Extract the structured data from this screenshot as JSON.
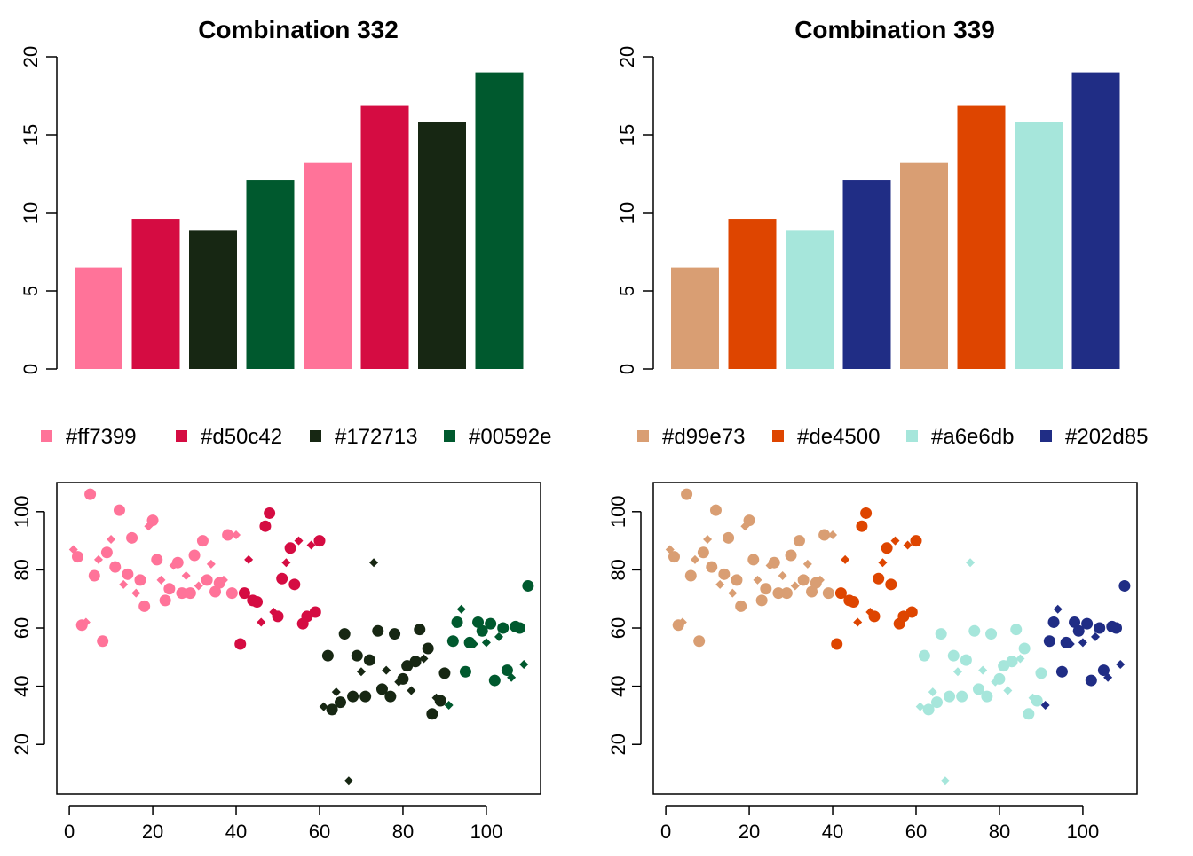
{
  "swatches": [
    {
      "title": "Combination 332",
      "palette": [
        "#ff7399",
        "#d50c42",
        "#172713",
        "#00592e"
      ]
    },
    {
      "title": "Combination 339",
      "palette": [
        "#d99e73",
        "#de4500",
        "#a6e6db",
        "#202d85"
      ]
    }
  ],
  "chart_data": [
    {
      "type": "bar",
      "title": "Combination 332",
      "values": [
        6.5,
        9.6,
        8.9,
        12.1,
        13.2,
        16.9,
        15.8,
        19.0
      ],
      "colors": [
        "#ff7399",
        "#d50c42",
        "#172713",
        "#00592e",
        "#ff7399",
        "#d50c42",
        "#172713",
        "#00592e"
      ],
      "ylim": [
        0,
        20
      ],
      "yticks": [
        0,
        5,
        10,
        15,
        20
      ],
      "axes": {
        "y": "left"
      },
      "legend": {
        "position": "bottom",
        "entries": [
          "#ff7399",
          "#d50c42",
          "#172713",
          "#00592e"
        ]
      }
    },
    {
      "type": "bar",
      "title": "Combination 339",
      "values": [
        6.5,
        9.6,
        8.9,
        12.1,
        13.2,
        16.9,
        15.8,
        19.0
      ],
      "colors": [
        "#d99e73",
        "#de4500",
        "#a6e6db",
        "#202d85",
        "#d99e73",
        "#de4500",
        "#a6e6db",
        "#202d85"
      ],
      "ylim": [
        0,
        20
      ],
      "yticks": [
        0,
        5,
        10,
        15,
        20
      ],
      "axes": {
        "y": "left"
      },
      "legend": {
        "position": "bottom",
        "entries": [
          "#d99e73",
          "#de4500",
          "#a6e6db",
          "#202d85"
        ]
      }
    },
    {
      "type": "scatter",
      "title": "",
      "palette": [
        "#ff7399",
        "#d50c42",
        "#172713",
        "#00592e"
      ],
      "xlim": [
        -3,
        113
      ],
      "ylim": [
        3,
        110
      ],
      "xticks": [
        0,
        20,
        40,
        60,
        80,
        100
      ],
      "yticks": [
        20,
        40,
        60,
        80,
        100
      ],
      "grid": false,
      "markers": "circle = large, diamond = small; color by x-range group",
      "points": [
        [
          1,
          87,
          "d",
          0
        ],
        [
          2,
          84.5,
          "c",
          0
        ],
        [
          3,
          61,
          "c",
          0
        ],
        [
          4,
          62,
          "d",
          0
        ],
        [
          5,
          106,
          "c",
          0
        ],
        [
          6,
          78,
          "c",
          0
        ],
        [
          7,
          83.5,
          "d",
          0
        ],
        [
          8,
          55.5,
          "c",
          0
        ],
        [
          9,
          86,
          "c",
          0
        ],
        [
          10,
          90.5,
          "d",
          0
        ],
        [
          11,
          81,
          "c",
          0
        ],
        [
          12,
          100.5,
          "c",
          0
        ],
        [
          13,
          75,
          "d",
          0
        ],
        [
          14,
          78.5,
          "c",
          0
        ],
        [
          15,
          91,
          "c",
          0
        ],
        [
          16,
          72,
          "d",
          0
        ],
        [
          17,
          76.5,
          "c",
          0
        ],
        [
          18,
          67.5,
          "c",
          0
        ],
        [
          19,
          95,
          "d",
          0
        ],
        [
          20,
          97,
          "c",
          0
        ],
        [
          21,
          83.5,
          "c",
          0
        ],
        [
          22,
          76.5,
          "d",
          0
        ],
        [
          23,
          69.5,
          "c",
          0
        ],
        [
          24,
          73.5,
          "c",
          0
        ],
        [
          25,
          81.5,
          "d",
          0
        ],
        [
          26,
          82.5,
          "c",
          0
        ],
        [
          27,
          72,
          "c",
          0
        ],
        [
          28,
          78,
          "d",
          0
        ],
        [
          29,
          72,
          "c",
          0
        ],
        [
          30,
          85,
          "c",
          0
        ],
        [
          31,
          74.5,
          "d",
          0
        ],
        [
          32,
          90,
          "c",
          0
        ],
        [
          33,
          76.5,
          "c",
          0
        ],
        [
          34,
          82,
          "d",
          0
        ],
        [
          35,
          72.5,
          "c",
          0
        ],
        [
          36,
          75.5,
          "c",
          0
        ],
        [
          37,
          76.5,
          "d",
          0
        ],
        [
          38,
          92,
          "c",
          0
        ],
        [
          39,
          72,
          "c",
          0
        ],
        [
          40,
          92,
          "d",
          0
        ],
        [
          41,
          54.5,
          "c",
          1
        ],
        [
          42,
          72,
          "c",
          1
        ],
        [
          43,
          83.5,
          "d",
          1
        ],
        [
          44,
          69.5,
          "c",
          1
        ],
        [
          45,
          69,
          "c",
          1
        ],
        [
          46,
          62,
          "d",
          1
        ],
        [
          47,
          95,
          "c",
          1
        ],
        [
          48,
          99.5,
          "c",
          1
        ],
        [
          49,
          65.5,
          "d",
          1
        ],
        [
          50,
          64,
          "c",
          1
        ],
        [
          51,
          77,
          "c",
          1
        ],
        [
          52,
          82.5,
          "d",
          1
        ],
        [
          53,
          87.5,
          "c",
          1
        ],
        [
          54,
          75,
          "c",
          1
        ],
        [
          55,
          90,
          "d",
          1
        ],
        [
          56,
          61.5,
          "c",
          1
        ],
        [
          57,
          64,
          "c",
          1
        ],
        [
          58,
          88.5,
          "d",
          1
        ],
        [
          59,
          65.5,
          "c",
          1
        ],
        [
          60,
          90,
          "c",
          1
        ],
        [
          61,
          33,
          "d",
          2
        ],
        [
          62,
          50.5,
          "c",
          2
        ],
        [
          63,
          32,
          "c",
          2
        ],
        [
          64,
          38,
          "d",
          2
        ],
        [
          65,
          34.5,
          "c",
          2
        ],
        [
          66,
          58,
          "c",
          2
        ],
        [
          67,
          7.5,
          "d",
          2
        ],
        [
          68,
          36.5,
          "c",
          2
        ],
        [
          69,
          50.5,
          "c",
          2
        ],
        [
          70,
          45,
          "d",
          2
        ],
        [
          71,
          36.5,
          "c",
          2
        ],
        [
          72,
          49,
          "c",
          2
        ],
        [
          73,
          82.5,
          "d",
          2
        ],
        [
          74,
          59,
          "c",
          2
        ],
        [
          75,
          39,
          "c",
          2
        ],
        [
          76,
          45.5,
          "d",
          2
        ],
        [
          77,
          36.5,
          "c",
          2
        ],
        [
          78,
          58,
          "c",
          2
        ],
        [
          79,
          41.5,
          "d",
          2
        ],
        [
          80,
          42.5,
          "c",
          2
        ],
        [
          81,
          47,
          "c",
          2
        ],
        [
          82,
          38.5,
          "d",
          2
        ],
        [
          83,
          48.5,
          "c",
          2
        ],
        [
          84,
          59.5,
          "c",
          2
        ],
        [
          85,
          49.5,
          "d",
          2
        ],
        [
          86,
          53,
          "c",
          2
        ],
        [
          87,
          30.5,
          "c",
          2
        ],
        [
          88,
          36,
          "d",
          2
        ],
        [
          89,
          35,
          "c",
          2
        ],
        [
          90,
          44.5,
          "c",
          2
        ],
        [
          91,
          33.5,
          "d",
          3
        ],
        [
          92,
          55.5,
          "c",
          3
        ],
        [
          93,
          62,
          "c",
          3
        ],
        [
          94,
          66.5,
          "d",
          3
        ],
        [
          95,
          45,
          "c",
          3
        ],
        [
          96,
          55,
          "c",
          3
        ],
        [
          97,
          54.5,
          "d",
          3
        ],
        [
          98,
          62,
          "c",
          3
        ],
        [
          99,
          59,
          "c",
          3
        ],
        [
          100,
          55,
          "d",
          3
        ],
        [
          101,
          61.5,
          "c",
          3
        ],
        [
          102,
          42,
          "c",
          3
        ],
        [
          103,
          57,
          "d",
          3
        ],
        [
          104,
          60,
          "c",
          3
        ],
        [
          105,
          45.5,
          "c",
          3
        ],
        [
          106,
          43,
          "d",
          3
        ],
        [
          107,
          60.5,
          "c",
          3
        ],
        [
          108,
          60,
          "c",
          3
        ],
        [
          109,
          47.5,
          "d",
          3
        ],
        [
          110,
          74.5,
          "c",
          3
        ]
      ]
    },
    {
      "type": "scatter",
      "title": "",
      "palette": [
        "#d99e73",
        "#de4500",
        "#a6e6db",
        "#202d85"
      ],
      "xlim": [
        -3,
        113
      ],
      "ylim": [
        3,
        110
      ],
      "xticks": [
        0,
        20,
        40,
        60,
        80,
        100
      ],
      "yticks": [
        20,
        40,
        60,
        80,
        100
      ],
      "grid": false,
      "markers": "circle = large, diamond = small; color by x-range group",
      "points": "same as previous scatter"
    }
  ]
}
